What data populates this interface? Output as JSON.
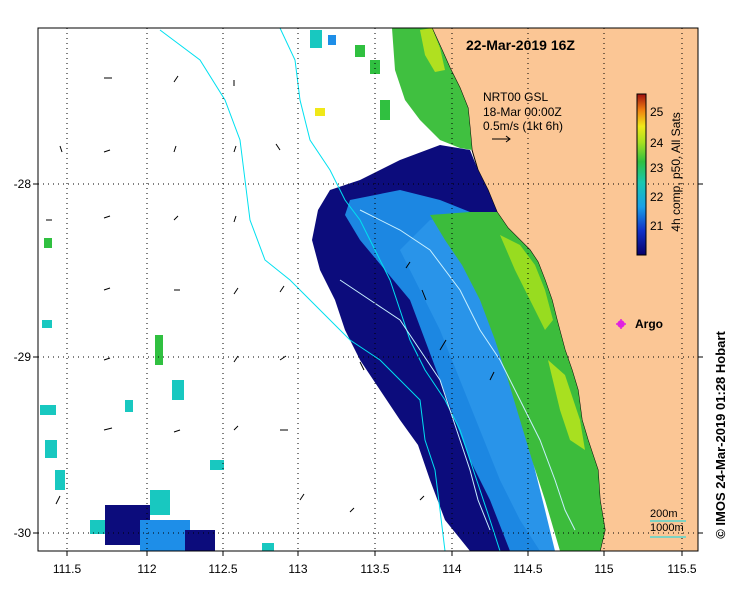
{
  "map": {
    "date_title": "22-Mar-2019 16Z",
    "x_ticks": [
      "111.5",
      "112",
      "112.5",
      "113",
      "113.5",
      "114",
      "114.5",
      "115",
      "115.5"
    ],
    "y_ticks": [
      "-28",
      "-29",
      "-30"
    ],
    "info_lines": [
      "NRT00 GSL",
      "18-Mar 00:00Z",
      "0.5m/s (1kt 6h)"
    ],
    "colorbar": {
      "label": "4h comp, p50, All Sats",
      "ticks": [
        "25",
        "24",
        "23",
        "22",
        "21"
      ],
      "range": [
        20.3,
        25.5
      ]
    },
    "argo_label": "Argo",
    "contour_labels": [
      "200m",
      "1000m"
    ],
    "credit": "© IMOS 24-Mar-2019 01:28 Hobart",
    "colors": {
      "land": "#fbc695",
      "cold": "#0a0a78",
      "warm": "#2ab84a",
      "bathymetry": "#00e0f0",
      "argo": "#e020e0"
    }
  }
}
